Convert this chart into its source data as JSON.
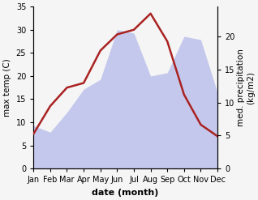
{
  "months": [
    "Jan",
    "Feb",
    "Mar",
    "Apr",
    "May",
    "Jun",
    "Jul",
    "Aug",
    "Sep",
    "Oct",
    "Nov",
    "Dec"
  ],
  "month_positions": [
    0,
    1,
    2,
    3,
    4,
    5,
    6,
    7,
    8,
    9,
    10,
    11
  ],
  "temperature": [
    7.5,
    13.5,
    17.5,
    18.5,
    25.5,
    29.0,
    30.0,
    33.5,
    27.5,
    16.0,
    9.5,
    7.0
  ],
  "precipitation": [
    6.5,
    5.5,
    8.5,
    12.0,
    13.5,
    21.0,
    20.5,
    14.0,
    14.5,
    20.0,
    19.5,
    11.5
  ],
  "temp_ylim": [
    0,
    35
  ],
  "precip_ylim": [
    0,
    24.5
  ],
  "temp_color": "#aa2222",
  "precip_fill_color": "#aab0e8",
  "precip_fill_alpha": 0.65,
  "xlabel": "date (month)",
  "ylabel_left": "max temp (C)",
  "ylabel_right": "med. precipitation\n(kg/m2)",
  "linewidth": 1.8,
  "xlabel_fontsize": 8,
  "ylabel_fontsize": 7.5,
  "tick_fontsize": 7,
  "right_yticks": [
    0,
    5,
    10,
    15,
    20
  ],
  "left_yticks": [
    0,
    5,
    10,
    15,
    20,
    25,
    30,
    35
  ],
  "bg_color": "#f5f5f5"
}
